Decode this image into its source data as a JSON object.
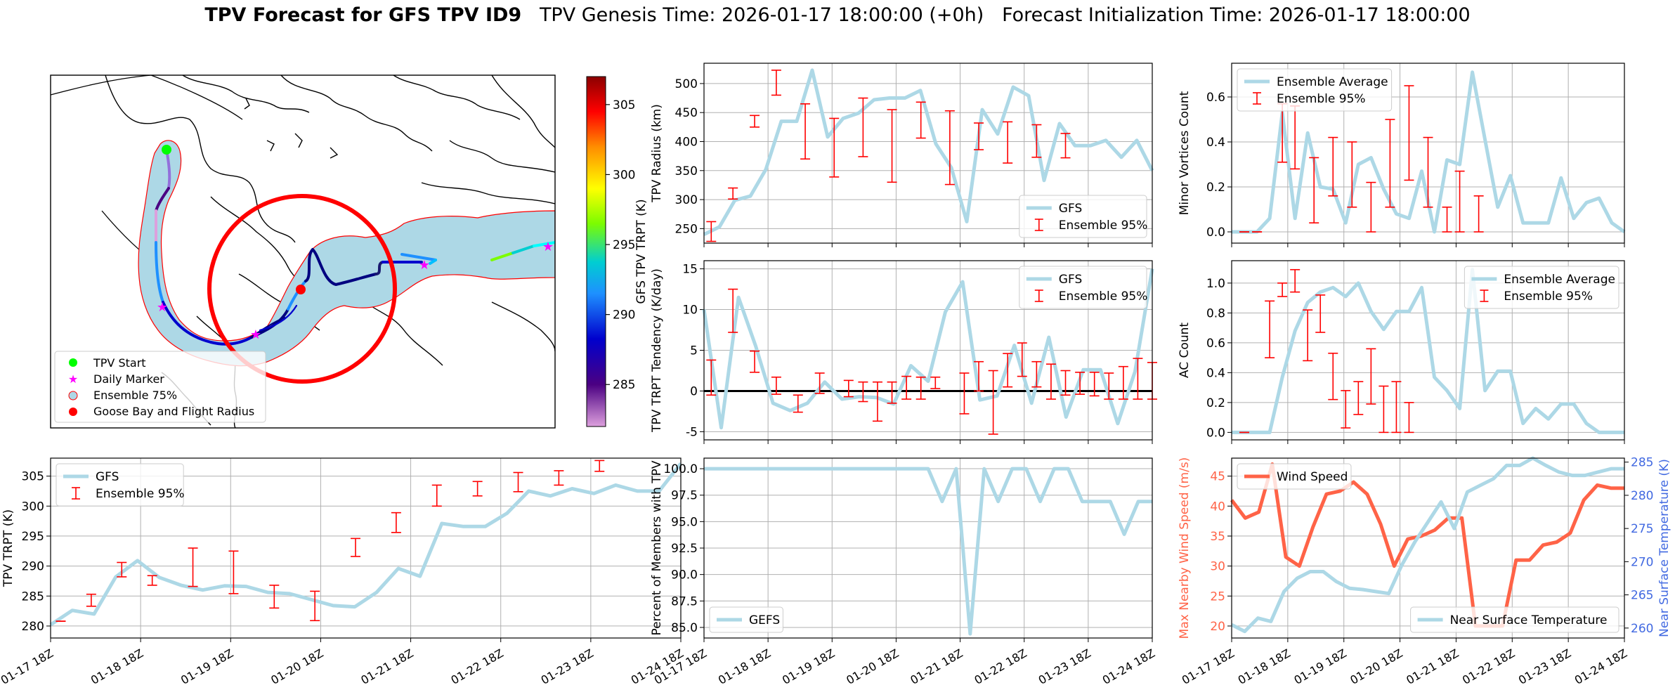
{
  "title": {
    "bold": "TPV Forecast for GFS TPV ID9",
    "genesis": "TPV Genesis Time: 2026-01-17 18:00:00 (+0h)",
    "init": "Forecast Initialization Time: 2026-01-17 18:00:00"
  },
  "colors": {
    "gfs": "#add8e6",
    "err": "#ff0000",
    "wind": "#ff6347",
    "temp": "#4169e1",
    "zero": "#000000"
  },
  "x_ticks": [
    "01-17 18Z",
    "01-18 18Z",
    "01-19 18Z",
    "01-20 18Z",
    "01-21 18Z",
    "01-22 18Z",
    "01-23 18Z",
    "01-24 18Z"
  ],
  "map": {
    "colorbar_label": "GFS TPV TRPT (K)",
    "colorbar_range": [
      282,
      307
    ],
    "colorbar_ticks": [
      285,
      290,
      295,
      300,
      305
    ],
    "legend": [
      "TPV Start",
      "Daily Marker",
      "Ensemble 75%",
      "Goose Bay and Flight Radius"
    ]
  },
  "chart_data": [
    {
      "id": "trpt",
      "type": "line",
      "xlabel": "",
      "ylabel": "TPV TRPT (K)",
      "ylim": [
        278,
        308
      ],
      "yticks": [
        280,
        285,
        290,
        295,
        300,
        305
      ],
      "legend": [
        "GFS",
        "Ensemble 95%"
      ],
      "legend_loc": "upper-left",
      "series": [
        {
          "name": "GFS",
          "values": [
            280.2,
            282.6,
            282.0,
            288.2,
            290.9,
            288.1,
            286.8,
            286.0,
            286.7,
            286.6,
            285.6,
            285.4,
            284.4,
            283.4,
            283.2,
            285.6,
            289.6,
            288.3,
            297.1,
            296.6,
            296.6,
            298.8,
            302.5,
            301.7,
            302.9,
            302.1,
            303.5,
            302.5,
            302.5,
            307.1
          ]
        }
      ],
      "errorbars": [
        [
          1,
          280.8,
          280.8
        ],
        [
          4,
          283.3,
          285.3
        ],
        [
          7,
          288.2,
          290.6
        ],
        [
          10,
          286.8,
          288.4
        ],
        [
          14,
          286.6,
          293.0
        ],
        [
          18,
          285.4,
          292.5
        ],
        [
          22,
          283.0,
          286.8
        ],
        [
          26,
          280.9,
          285.8
        ],
        [
          30,
          291.6,
          294.6
        ],
        [
          34,
          295.6,
          298.9
        ],
        [
          38,
          300.0,
          303.5
        ],
        [
          42,
          301.7,
          304.1
        ],
        [
          46,
          302.4,
          305.6
        ],
        [
          50,
          303.5,
          305.9
        ],
        [
          54,
          305.8,
          307.6
        ]
      ]
    },
    {
      "id": "radius",
      "type": "line",
      "xlabel": "",
      "ylabel": "TPV Radius (km)",
      "ylim": [
        225,
        535
      ],
      "yticks": [
        250,
        300,
        350,
        400,
        450,
        500
      ],
      "legend": [
        "GFS",
        "Ensemble 95%"
      ],
      "legend_loc": "lower-right",
      "series": [
        {
          "name": "GFS",
          "values": [
            240,
            253,
            299,
            306,
            352,
            435,
            435,
            523,
            408,
            440,
            449,
            472,
            475,
            475,
            488,
            396,
            355,
            262,
            455,
            413,
            494,
            479,
            333,
            431,
            393,
            393,
            402,
            373,
            402,
            350
          ]
        }
      ],
      "errorbars": [
        [
          1,
          228,
          262
        ],
        [
          4,
          301,
          320
        ],
        [
          7,
          425,
          445
        ],
        [
          10,
          480,
          523
        ],
        [
          14,
          370,
          465
        ],
        [
          18,
          339,
          440
        ],
        [
          22,
          374,
          475
        ],
        [
          26,
          330,
          455
        ],
        [
          30,
          406,
          468
        ],
        [
          34,
          326,
          453
        ],
        [
          38,
          386,
          432
        ],
        [
          42,
          363,
          434
        ],
        [
          46,
          373,
          429
        ],
        [
          50,
          372,
          414
        ]
      ]
    },
    {
      "id": "tendency",
      "type": "line",
      "xlabel": "",
      "ylabel": "TPV TRPT Tendency (K/day)",
      "ylim": [
        -6,
        16
      ],
      "yticks": [
        -5,
        0,
        5,
        10,
        15
      ],
      "legend": [
        "GFS",
        "Ensemble 95%"
      ],
      "legend_loc": "upper-right",
      "series": [
        {
          "name": "GFS",
          "values": [
            10,
            -4.5,
            11.5,
            5.5,
            -1.5,
            -2.4,
            -1.5,
            1.1,
            -1,
            -0.7,
            -0.8,
            -1.6,
            3.1,
            1.2,
            9.7,
            13.4,
            -1.1,
            -0.6,
            5.6,
            -1.5,
            6.6,
            -3.2,
            2.6,
            2.6,
            -4,
            2.4,
            15
          ]
        }
      ],
      "errorbars": [
        [
          1,
          -0.5,
          3.8
        ],
        [
          4,
          7.2,
          12.5
        ],
        [
          7,
          2.3,
          4.9
        ],
        [
          10,
          -0.4,
          1.7
        ],
        [
          13,
          -2.6,
          -0.5
        ],
        [
          16,
          -0.3,
          2.2
        ],
        [
          20,
          -0.7,
          1.3
        ],
        [
          22,
          -1.3,
          1.1
        ],
        [
          24,
          -3.7,
          1.1
        ],
        [
          26,
          -1.5,
          1.1
        ],
        [
          28,
          -1,
          1.8
        ],
        [
          30,
          -1,
          1.7
        ],
        [
          32,
          0.3,
          1.7
        ],
        [
          36,
          -2.8,
          2.2
        ],
        [
          38,
          0,
          3.6
        ],
        [
          40,
          -5.3,
          2.5
        ],
        [
          42,
          0.5,
          4.6
        ],
        [
          44,
          1.8,
          5.9
        ],
        [
          46,
          0.5,
          3.6
        ],
        [
          48,
          -1,
          3.3
        ],
        [
          50,
          -0.5,
          2.5
        ],
        [
          52,
          -0.4,
          2.3
        ],
        [
          54,
          -0.6,
          2.3
        ],
        [
          56,
          -1,
          2.2
        ],
        [
          58,
          -1,
          3
        ],
        [
          60,
          -1,
          4
        ],
        [
          62,
          -1,
          3.5
        ]
      ]
    },
    {
      "id": "members",
      "type": "line",
      "xlabel": "",
      "ylabel": "Percent of Members with TPV",
      "ylim": [
        84,
        101
      ],
      "yticks": [
        85.0,
        87.5,
        90.0,
        92.5,
        95.0,
        97.5,
        100.0
      ],
      "legend": [
        "GEFS"
      ],
      "legend_loc": "lower-left",
      "series": [
        {
          "name": "GEFS",
          "values": [
            100,
            100,
            100,
            100,
            100,
            100,
            100,
            100,
            100,
            100,
            100,
            100,
            100,
            100,
            100,
            100,
            100,
            96.9,
            100,
            84.4,
            100,
            96.9,
            100,
            100,
            96.9,
            100,
            100,
            96.9,
            96.9,
            96.9,
            93.8,
            96.9,
            96.9
          ]
        }
      ]
    },
    {
      "id": "minor",
      "type": "line",
      "xlabel": "",
      "ylabel": "Minor Vortices Count",
      "ylim": [
        -0.05,
        0.75
      ],
      "yticks": [
        0.0,
        0.2,
        0.4,
        0.6
      ],
      "legend": [
        "Ensemble Average",
        "Ensemble 95%"
      ],
      "legend_loc": "upper-left",
      "series": [
        {
          "name": "Ensemble Average",
          "values": [
            0,
            0,
            0,
            0.06,
            0.53,
            0.06,
            0.44,
            0.2,
            0.19,
            0.04,
            0.3,
            0.33,
            0.19,
            0.08,
            0.06,
            0.27,
            0,
            0.32,
            0.3,
            0.71,
            0.41,
            0.11,
            0.25,
            0.04,
            0.04,
            0.04,
            0.24,
            0.06,
            0.13,
            0.15,
            0.04,
            0
          ]
        }
      ],
      "errorbars": [
        [
          2,
          0,
          0
        ],
        [
          4,
          0,
          0
        ],
        [
          8,
          0.31,
          0.57
        ],
        [
          10,
          0.28,
          0.56
        ],
        [
          13,
          0.04,
          0.33
        ],
        [
          16,
          0.16,
          0.42
        ],
        [
          19,
          0.11,
          0.4
        ],
        [
          22,
          0,
          0.22
        ],
        [
          25,
          0.11,
          0.5
        ],
        [
          28,
          0.23,
          0.65
        ],
        [
          31,
          0.11,
          0.42
        ],
        [
          34,
          0,
          0.11
        ],
        [
          36,
          0,
          0.27
        ],
        [
          39,
          0,
          0.16
        ]
      ]
    },
    {
      "id": "ac",
      "type": "line",
      "xlabel": "",
      "ylabel": "AC Count",
      "ylim": [
        -0.05,
        1.15
      ],
      "yticks": [
        0.0,
        0.2,
        0.4,
        0.6,
        0.8,
        1.0
      ],
      "legend": [
        "Ensemble Average",
        "Ensemble 95%"
      ],
      "legend_loc": "upper-right",
      "series": [
        {
          "name": "Ensemble Average",
          "values": [
            0,
            0,
            0,
            0,
            0.37,
            0.68,
            0.87,
            0.94,
            0.97,
            0.91,
            1.0,
            0.81,
            0.69,
            0.81,
            0.81,
            0.97,
            0.37,
            0.28,
            0.16,
            1.09,
            0.28,
            0.41,
            0.41,
            0.06,
            0.16,
            0.09,
            0.19,
            0.19,
            0.06,
            0,
            0,
            0
          ]
        }
      ],
      "errorbars": [
        [
          2,
          0,
          0
        ],
        [
          6,
          0.5,
          0.88
        ],
        [
          8,
          0.91,
          1.0
        ],
        [
          10,
          0.94,
          1.09
        ],
        [
          12,
          0.48,
          0.82
        ],
        [
          14,
          0.67,
          0.92
        ],
        [
          16,
          0.22,
          0.53
        ],
        [
          18,
          0.03,
          0.28
        ],
        [
          20,
          0.12,
          0.34
        ],
        [
          22,
          0.19,
          0.56
        ],
        [
          24,
          0,
          0.31
        ],
        [
          26,
          0,
          0.34
        ],
        [
          28,
          0,
          0.2
        ]
      ]
    },
    {
      "id": "wind",
      "type": "line",
      "xlabel": "",
      "ylabel": "Max Nearby Wind Speed (m/s)",
      "ylim": [
        18,
        48
      ],
      "yticks": [
        20,
        25,
        30,
        35,
        40,
        45
      ],
      "y2label": "Near Surface Temperature (K)",
      "y2lim": [
        258.5,
        285.6
      ],
      "y2ticks": [
        260,
        265,
        270,
        275,
        280,
        285
      ],
      "legend": [
        "Wind Speed",
        "Near Surface Temperature"
      ],
      "legend_loc": "upper-left / lower-right",
      "series": [
        {
          "name": "Wind Speed",
          "axis": "left",
          "values": [
            41,
            38,
            39,
            47,
            31.5,
            30,
            36.5,
            42,
            42.5,
            44,
            42,
            37,
            30,
            34.5,
            35,
            36,
            38,
            38,
            20,
            20,
            20,
            31,
            31,
            33.5,
            34,
            35.5,
            41,
            43.5,
            43,
            43
          ]
        },
        {
          "name": "Near Surface Temperature",
          "axis": "right",
          "values": [
            260.5,
            259.5,
            261.5,
            261,
            265.5,
            267.5,
            268.5,
            268.5,
            267,
            266,
            265.8,
            265.5,
            265.2,
            269.5,
            273,
            276,
            279,
            275,
            280.5,
            281.5,
            282.5,
            284.5,
            284.5,
            285.6,
            284.5,
            283.5,
            283,
            283,
            283.5,
            284,
            284
          ]
        }
      ]
    }
  ]
}
